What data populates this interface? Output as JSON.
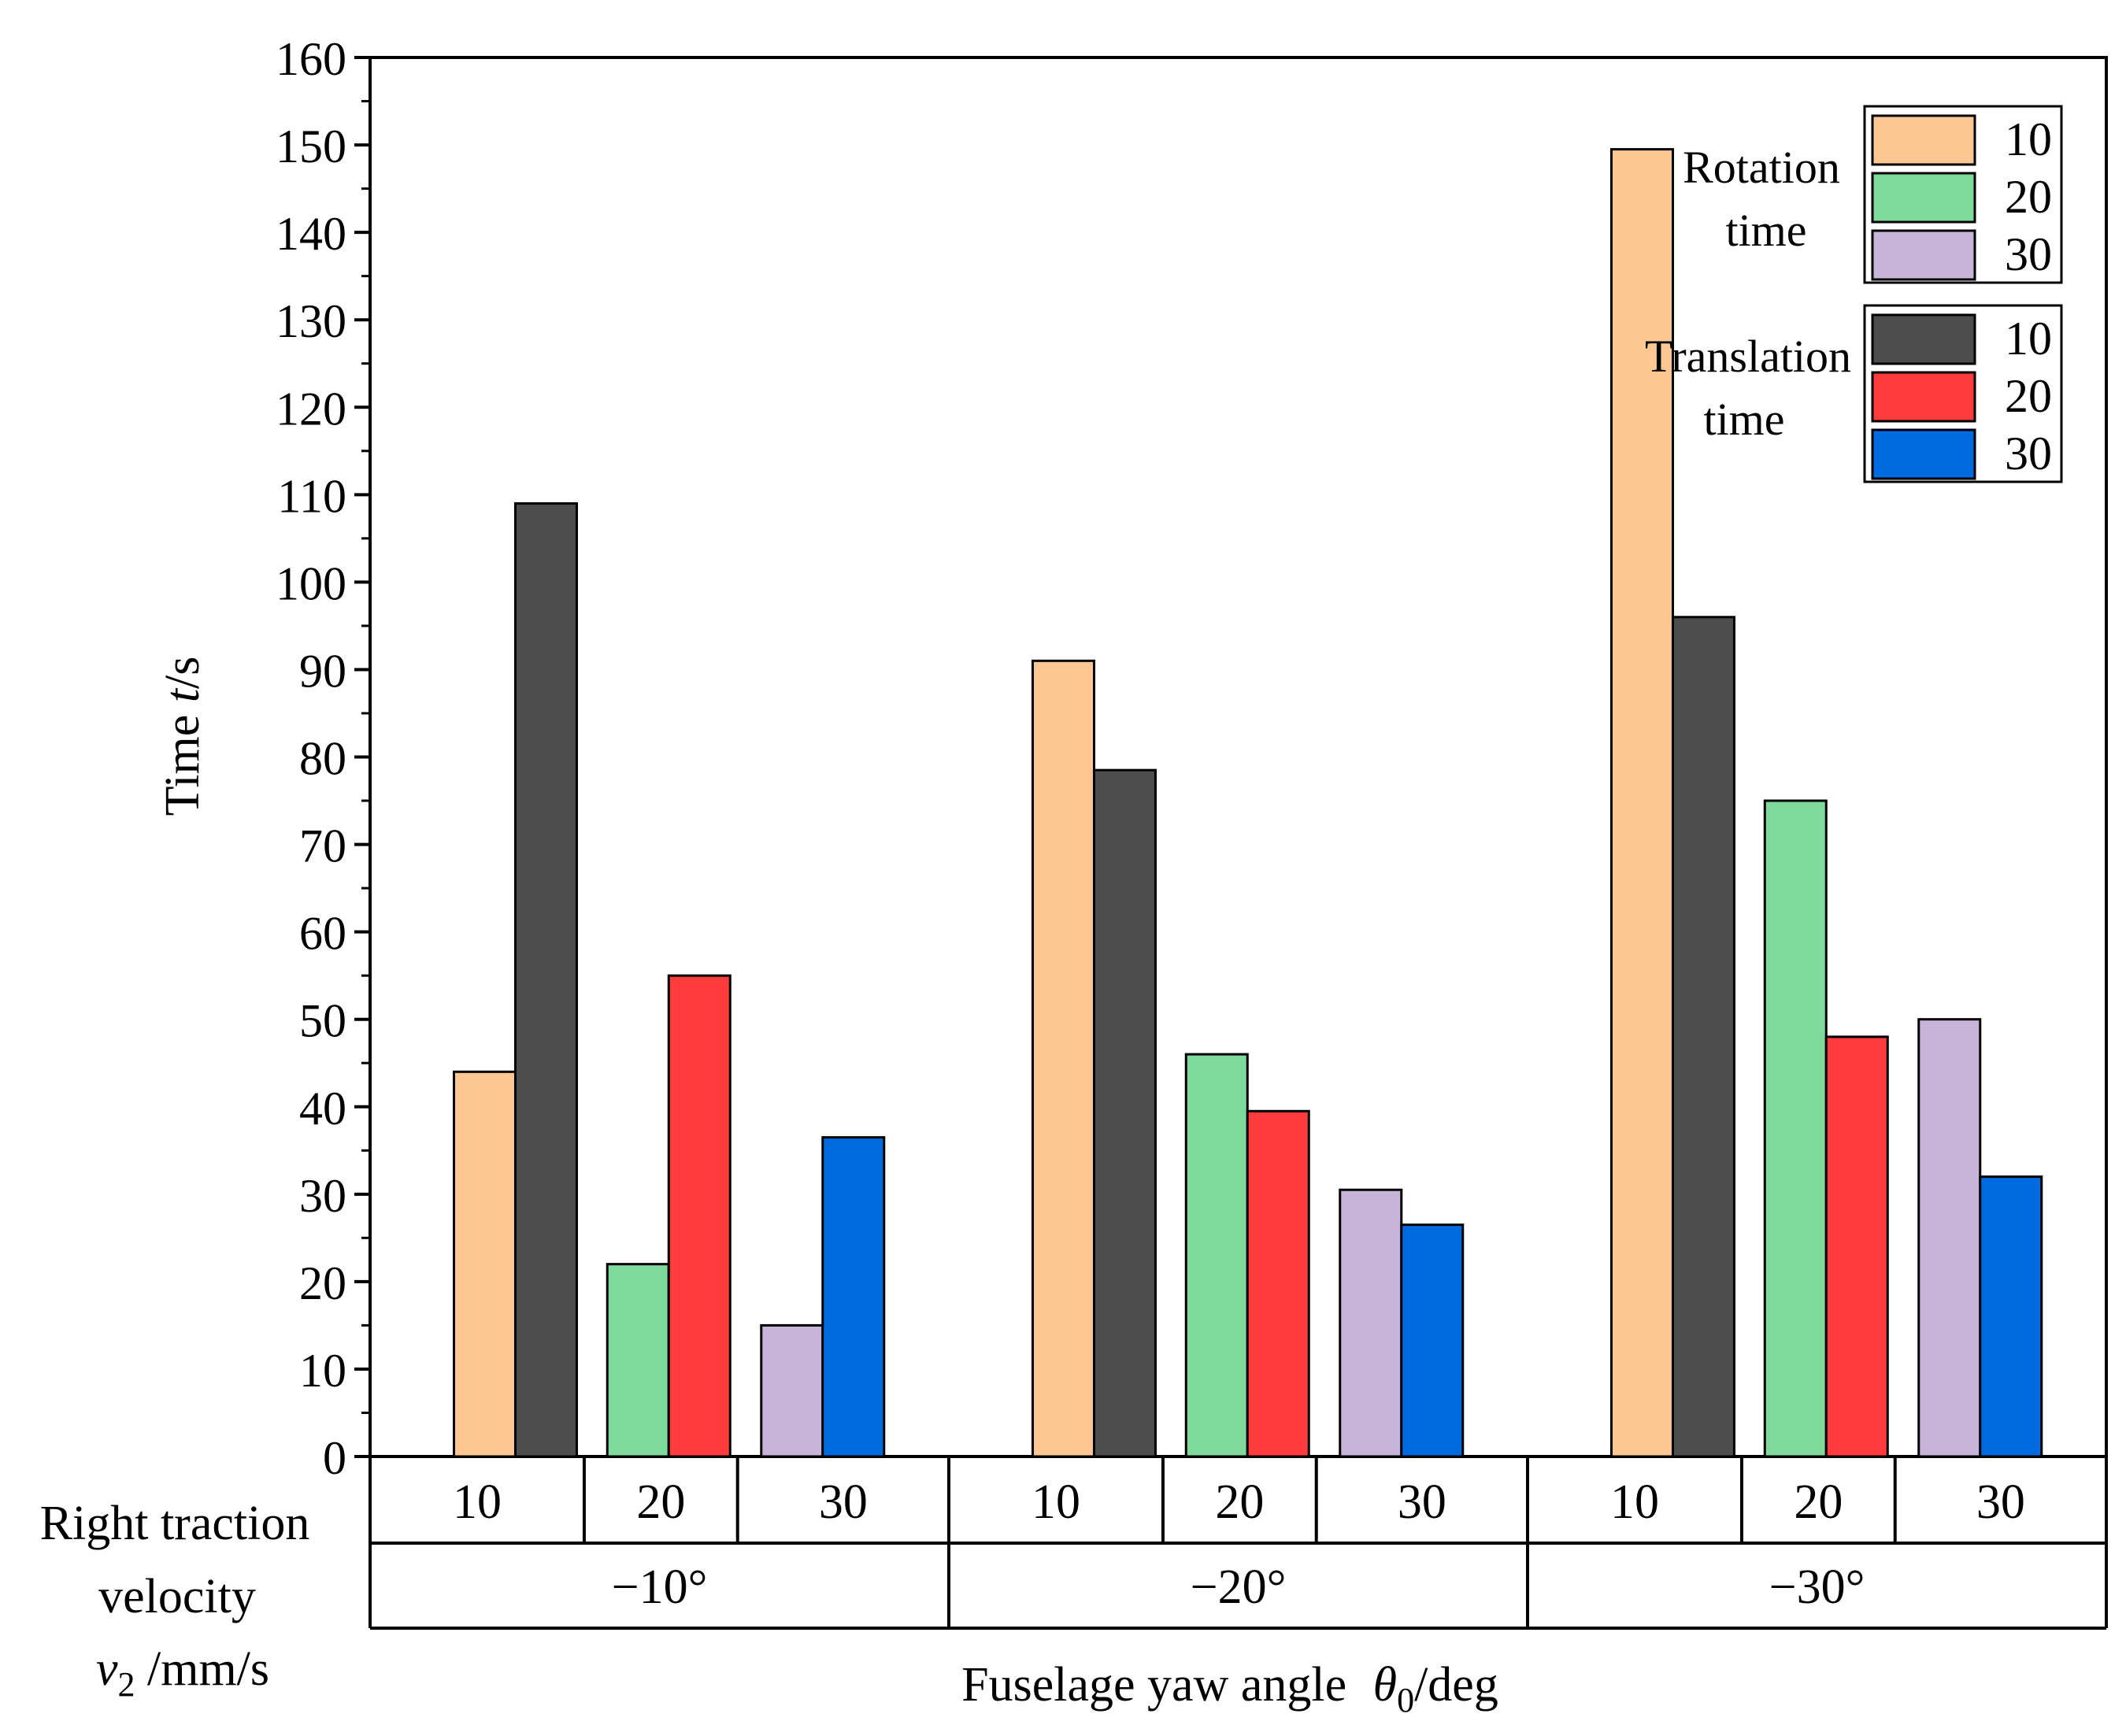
{
  "chart_data": {
    "type": "bar",
    "ylabel": {
      "prefix": "Time ",
      "var": "t",
      "unit": "/s"
    },
    "xlabel": {
      "prefix": "Fuselage yaw angle ",
      "var": "θ",
      "sub": "0",
      "unit": "/deg"
    },
    "row_label": {
      "line1": "Right traction",
      "line2": "velocity",
      "var": "v",
      "sub": "2",
      "unit": " /mm/s"
    },
    "ylim": [
      0,
      160
    ],
    "yticks": [
      "0",
      "10",
      "20",
      "30",
      "40",
      "50",
      "60",
      "70",
      "80",
      "90",
      "100",
      "110",
      "120",
      "130",
      "140",
      "150",
      "160"
    ],
    "groups": [
      {
        "label": "−10°",
        "velocities": [
          {
            "label": "10",
            "rotation": 44,
            "translation": 109
          },
          {
            "label": "20",
            "rotation": 22,
            "translation": 55
          },
          {
            "label": "30",
            "rotation": 15,
            "translation": 36.5
          }
        ]
      },
      {
        "label": "−20°",
        "velocities": [
          {
            "label": "10",
            "rotation": 91,
            "translation": 78.5
          },
          {
            "label": "20",
            "rotation": 46,
            "translation": 39.5
          },
          {
            "label": "30",
            "rotation": 30.5,
            "translation": 26.5
          }
        ]
      },
      {
        "label": "−30°",
        "velocities": [
          {
            "label": "10",
            "rotation": 149.5,
            "translation": 96
          },
          {
            "label": "20",
            "rotation": 75,
            "translation": 48
          },
          {
            "label": "30",
            "rotation": 50,
            "translation": 32
          }
        ]
      }
    ],
    "legend": {
      "placement": "top-right",
      "rotation": {
        "title_line1": "Rotation",
        "title_line2": "time",
        "items": [
          "10",
          "20",
          "30"
        ]
      },
      "translation": {
        "title_line1": "Translation",
        "title_line2": "time",
        "items": [
          "10",
          "20",
          "30"
        ]
      }
    },
    "colors": {
      "rotation": [
        "#FDC793",
        "#7FD99A",
        "#C8B4D8"
      ],
      "translation": [
        "#4D4D4D",
        "#FF3B3B",
        "#006BE0"
      ]
    }
  }
}
